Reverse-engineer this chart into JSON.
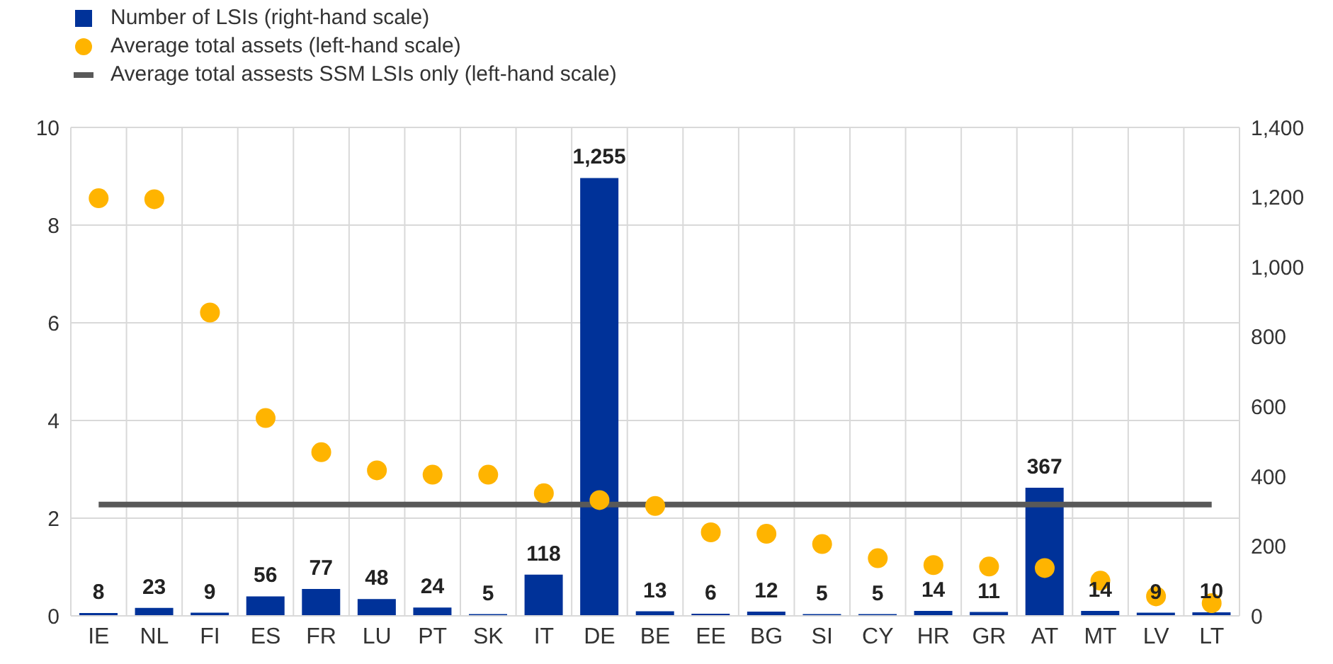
{
  "chart_data": {
    "type": "bar",
    "categories": [
      "IE",
      "NL",
      "FI",
      "ES",
      "FR",
      "LU",
      "PT",
      "SK",
      "IT",
      "DE",
      "BE",
      "EE",
      "BG",
      "SI",
      "CY",
      "HR",
      "GR",
      "AT",
      "MT",
      "LV",
      "LT"
    ],
    "series": [
      {
        "name": "Number of LSIs (right-hand scale)",
        "axis": "y2",
        "color": "#003299",
        "values": [
          8,
          23,
          9,
          56,
          77,
          48,
          24,
          5,
          118,
          1255,
          13,
          6,
          12,
          5,
          5,
          14,
          11,
          367,
          14,
          9,
          10
        ],
        "value_labels": [
          "8",
          "23",
          "9",
          "56",
          "77",
          "48",
          "24",
          "5",
          "118",
          "1,255",
          "13",
          "6",
          "12",
          "5",
          "5",
          "14",
          "11",
          "367",
          "14",
          "9",
          "10"
        ]
      },
      {
        "name": "Average total assets (left-hand scale)",
        "type": "scatter",
        "marker": "circle",
        "color": "#ffb400",
        "values": [
          8.55,
          8.53,
          6.21,
          4.05,
          3.35,
          2.98,
          2.89,
          2.89,
          2.51,
          2.37,
          2.25,
          1.71,
          1.68,
          1.47,
          1.18,
          1.04,
          1.01,
          0.98,
          0.72,
          0.4,
          0.26
        ]
      },
      {
        "name": "Average total assests SSM LSIs only (left-hand scale)",
        "type": "line",
        "line_style": "solid",
        "marker": "none",
        "color": "#595959",
        "values": [
          2.28,
          2.28,
          2.28,
          2.28,
          2.28,
          2.28,
          2.28,
          2.28,
          2.28,
          2.28,
          2.28,
          2.28,
          2.28,
          2.28,
          2.28,
          2.28,
          2.28,
          2.28,
          2.28,
          2.28,
          2.28
        ]
      }
    ],
    "ylim": [
      0,
      10
    ],
    "yticks": [
      0,
      2,
      4,
      6,
      8,
      10
    ],
    "y2lim": [
      0,
      1400
    ],
    "y2ticks": [
      0,
      200,
      400,
      600,
      800,
      {
        "value": 1000,
        "label": "1,000"
      },
      {
        "value": 1200,
        "label": "1,200"
      },
      {
        "value": 1400,
        "label": "1,400"
      }
    ],
    "grid": true,
    "legend": "top left"
  }
}
